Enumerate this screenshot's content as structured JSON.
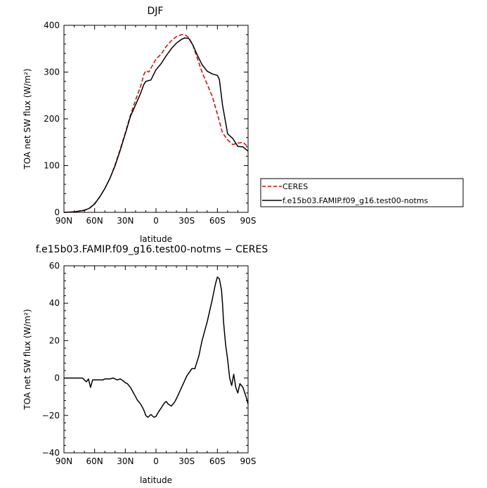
{
  "chart_data": [
    {
      "type": "line",
      "title": "DJF",
      "xlabel": "latitude",
      "ylabel": "TOA net SW flux (W/m²)",
      "xlim": [
        90,
        -90
      ],
      "ylim": [
        0,
        400
      ],
      "xticks": [
        90,
        60,
        30,
        0,
        -30,
        -60,
        -90
      ],
      "xticklabels": [
        "90N",
        "60N",
        "30N",
        "0",
        "30S",
        "60S",
        "90S"
      ],
      "yticks": [
        0,
        100,
        200,
        300,
        400
      ],
      "yticklabels": [
        "0",
        "100",
        "200",
        "300",
        "400"
      ],
      "legend": {
        "placement": "right"
      },
      "series": [
        {
          "name": "CERES",
          "color": "#dd0000",
          "dash": "dashed",
          "x": [
            90,
            80,
            70,
            65,
            60,
            55,
            50,
            45,
            40,
            35,
            30,
            25,
            20,
            15,
            12,
            10,
            7,
            5,
            0,
            -5,
            -10,
            -15,
            -20,
            -25,
            -28,
            -32,
            -36,
            -40,
            -45,
            -50,
            -55,
            -60,
            -65,
            -70,
            -75,
            -80,
            -85,
            -90
          ],
          "y": [
            0,
            1,
            5,
            9,
            19,
            33,
            51,
            73,
            102,
            135,
            170,
            208,
            240,
            270,
            294,
            303,
            300,
            308,
            328,
            338,
            355,
            367,
            376,
            380,
            380,
            374,
            358,
            332,
            300,
            274,
            248,
            210,
            170,
            155,
            145,
            148,
            150,
            140
          ]
        },
        {
          "name": "f.e15b03.FAMIP.f09_g16.test00-notms",
          "color": "#000000",
          "dash": "solid",
          "x": [
            90,
            80,
            70,
            65,
            60,
            55,
            50,
            45,
            40,
            35,
            30,
            25,
            20,
            15,
            12,
            10,
            7,
            5,
            0,
            -5,
            -10,
            -15,
            -20,
            -25,
            -28,
            -32,
            -36,
            -40,
            -45,
            -50,
            -55,
            -60,
            -62,
            -65,
            -70,
            -75,
            -80,
            -85,
            -90
          ],
          "y": [
            0,
            1,
            4,
            9,
            18,
            33,
            51,
            73,
            100,
            133,
            168,
            205,
            230,
            255,
            273,
            280,
            282,
            283,
            305,
            318,
            335,
            350,
            362,
            370,
            373,
            372,
            358,
            338,
            316,
            302,
            296,
            293,
            284,
            230,
            168,
            158,
            141,
            140,
            131
          ]
        }
      ]
    },
    {
      "type": "line",
      "title": "f.e15b03.FAMIP.f09_g16.test00-notms − CERES",
      "xlabel": "latitude",
      "ylabel": "TOA net SW flux (W/m²)",
      "xlim": [
        90,
        -90
      ],
      "ylim": [
        -40,
        60
      ],
      "xticks": [
        90,
        60,
        30,
        0,
        -30,
        -60,
        -90
      ],
      "xticklabels": [
        "90N",
        "60N",
        "30N",
        "0",
        "30S",
        "60S",
        "90S"
      ],
      "yticks": [
        -40,
        -20,
        0,
        20,
        40,
        60
      ],
      "yticklabels": [
        "−40",
        "−20",
        "0",
        "20",
        "40",
        "60"
      ],
      "series": [
        {
          "color": "#000000",
          "dash": "solid",
          "x": [
            90,
            82,
            72,
            70,
            68,
            66,
            64,
            62,
            58,
            55,
            52,
            50,
            48,
            45,
            42,
            40,
            38,
            35,
            32,
            30,
            28,
            25,
            22,
            20,
            18,
            15,
            12,
            10,
            8,
            5,
            2,
            0,
            -2,
            -5,
            -8,
            -10,
            -12,
            -15,
            -18,
            -20,
            -25,
            -30,
            -35,
            -38,
            -42,
            -45,
            -50,
            -55,
            -58,
            -60,
            -62,
            -63,
            -64,
            -65,
            -66,
            -68,
            -70,
            -72,
            -74,
            -76,
            -78,
            -80,
            -82,
            -85,
            -88,
            -90
          ],
          "y": [
            0,
            0,
            0,
            -1,
            -2,
            -0.5,
            -5,
            -1,
            -1,
            -1,
            -1,
            -0.5,
            -0.5,
            -0.5,
            0,
            -0.5,
            -1,
            -0.5,
            -1.5,
            -2.5,
            -3,
            -5,
            -8,
            -10,
            -12,
            -14,
            -17,
            -20,
            -21,
            -19.5,
            -21,
            -20.5,
            -18.5,
            -16,
            -13.5,
            -12.5,
            -14,
            -15,
            -13,
            -11,
            -5,
            1,
            5,
            5,
            12,
            20,
            30,
            42,
            50,
            54,
            53,
            50,
            47,
            40,
            30,
            18,
            10,
            0,
            -4,
            2,
            -5,
            -8,
            -3,
            -5,
            -10,
            -14
          ]
        }
      ]
    }
  ]
}
